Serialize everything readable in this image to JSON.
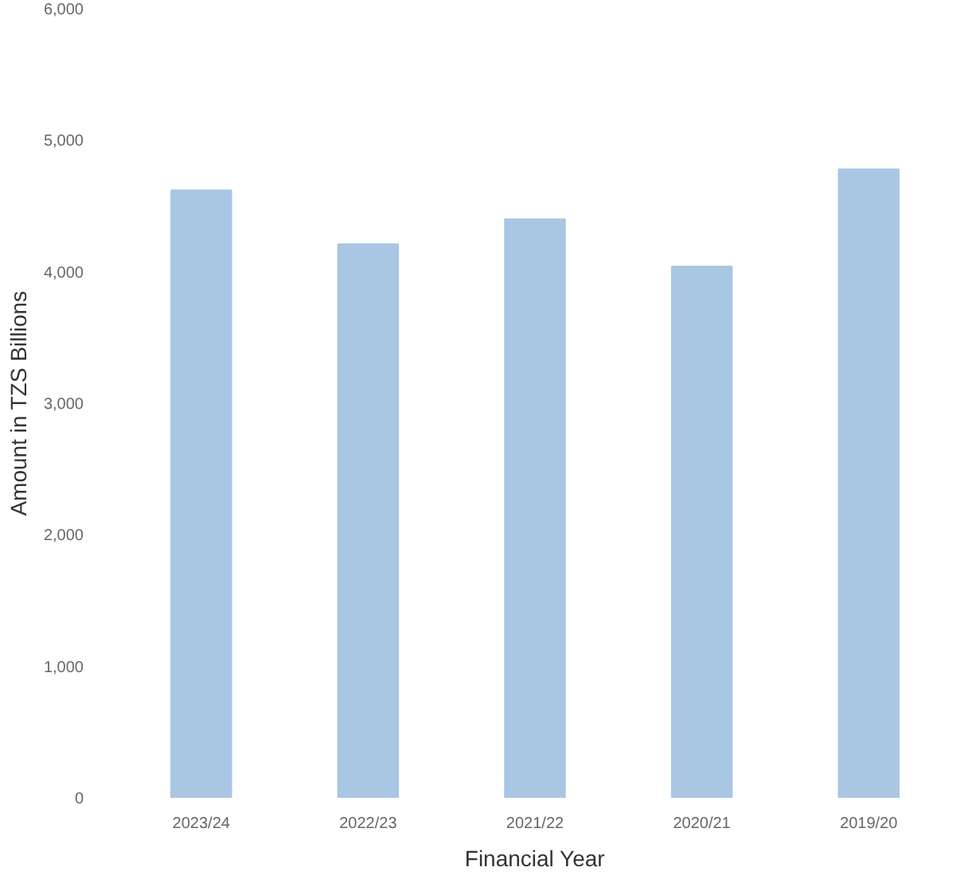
{
  "chart_data": {
    "type": "bar",
    "xlabel": "Financial Year",
    "ylabel": "Amount in TZS Billions",
    "categories": [
      "2023/24",
      "2022/23",
      "2021/22",
      "2020/21",
      "2019/20"
    ],
    "values": [
      4620,
      4210,
      4400,
      4040,
      4780
    ],
    "color": "#a9c6e3",
    "ylim": [
      0,
      6000
    ],
    "yticks": [
      {
        "value": 0,
        "label": "0"
      },
      {
        "value": 1000,
        "label": "1,000"
      },
      {
        "value": 2000,
        "label": "2,000"
      },
      {
        "value": 3000,
        "label": "3,000"
      },
      {
        "value": 4000,
        "label": "4,000"
      },
      {
        "value": 5000,
        "label": "5,000"
      },
      {
        "value": 6000,
        "label": "6,000"
      }
    ],
    "grid": false
  }
}
